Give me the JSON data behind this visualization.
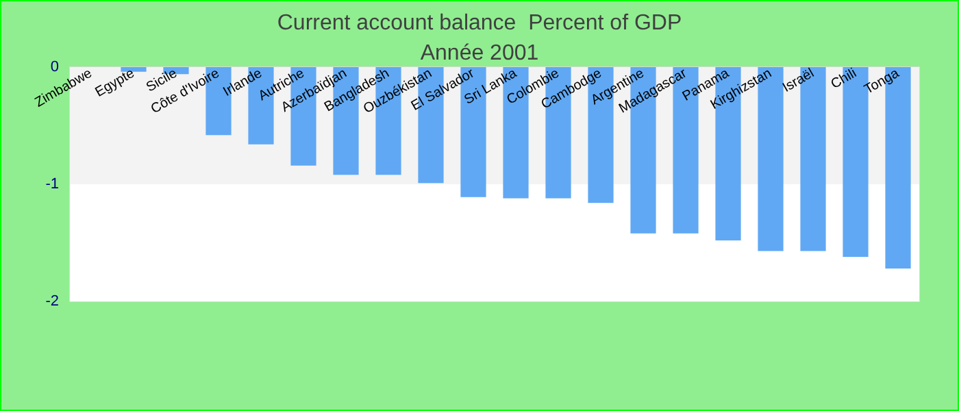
{
  "chart_data": {
    "type": "bar",
    "title": "Current account balance  Percent of GDP",
    "subtitle": "Année 2001",
    "categories": [
      "Zimbabwe",
      "Egypte",
      "Sicile",
      "Côte d'Ivoire",
      "Irlande",
      "Autriche",
      "Azerbaïdjan",
      "Bangladesh",
      "Ouzbékistan",
      "El Salvador",
      "Sri Lanka",
      "Colombie",
      "Cambodge",
      "Argentine",
      "Madagascar",
      "Panama",
      "Kirghizstan",
      "Israël",
      "Chili",
      "Tonga"
    ],
    "values": [
      0,
      -0.04,
      -0.06,
      -0.58,
      -0.66,
      -0.84,
      -0.92,
      -0.92,
      -0.99,
      -1.11,
      -1.12,
      -1.12,
      -1.16,
      -1.42,
      -1.42,
      -1.48,
      -1.57,
      -1.57,
      -1.62,
      -1.72
    ],
    "color": "#60a8f4",
    "ylim": [
      -2,
      0
    ],
    "yticks": [
      -2,
      -1,
      0
    ],
    "bands": [
      {
        "axis": "y",
        "from": -1,
        "to": 0,
        "color": "#f3f3f3"
      },
      {
        "axis": "y",
        "from": -2,
        "to": -1,
        "color": "#ffffff"
      }
    ]
  }
}
